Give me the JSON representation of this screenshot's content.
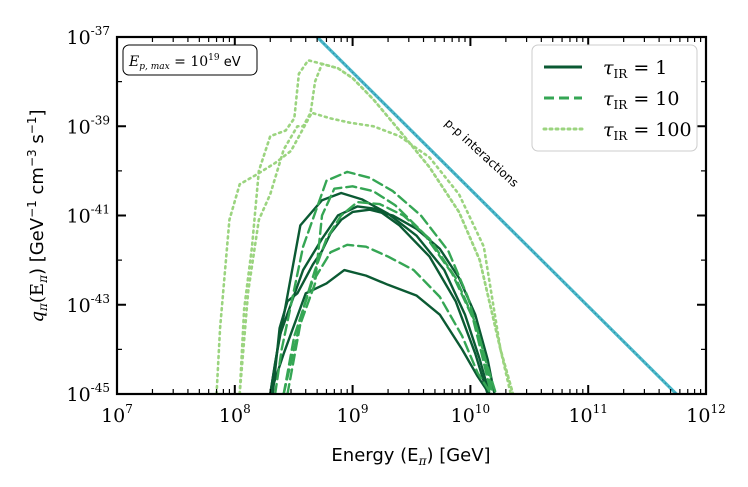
{
  "chart_data": {
    "type": "line",
    "xscale": "log",
    "yscale": "log",
    "xlim": [
      10000000.0,
      1000000000000.0
    ],
    "ylim": [
      1e-45,
      1e-37
    ],
    "xlabel": "Energy (E",
    "xlabel_sub": "π",
    "xlabel_tail": ") [GeV]",
    "ylabel": "q",
    "ylabel_sub": "π",
    "ylabel_mid": "(E",
    "ylabel_sub2": "π",
    "ylabel_tail": ") [GeV",
    "ylabel_units": "cm",
    "ylabel_s": "s",
    "x_ticks": [
      {
        "value": 10000000.0,
        "base": "10",
        "exp": "7"
      },
      {
        "value": 100000000.0,
        "base": "10",
        "exp": "8"
      },
      {
        "value": 1000000000.0,
        "base": "10",
        "exp": "9"
      },
      {
        "value": 10000000000.0,
        "base": "10",
        "exp": "10"
      },
      {
        "value": 100000000000.0,
        "base": "10",
        "exp": "11"
      },
      {
        "value": 1000000000000.0,
        "base": "10",
        "exp": "12"
      }
    ],
    "y_ticks": [
      {
        "value": 1e-37,
        "base": "10",
        "exp": "-37"
      },
      {
        "value": 1e-39,
        "base": "10",
        "exp": "-39"
      },
      {
        "value": 1e-41,
        "base": "10",
        "exp": "-41"
      },
      {
        "value": 1e-43,
        "base": "10",
        "exp": "-43"
      },
      {
        "value": 1e-45,
        "base": "10",
        "exp": "-45"
      }
    ],
    "annotation_box": {
      "lhs": "E",
      "lhs_sub": "p, max",
      "eq": " = 10",
      "exp": "19",
      "unit": " eV"
    },
    "pp_label": "p-p interactions",
    "pp_line": {
      "name": "p-p interactions",
      "color": "#4ab8c9",
      "x": [
        500000000.0,
        560000000000.0
      ],
      "y": [
        1e-37,
        1e-45
      ]
    },
    "legend": [
      {
        "label": "τ",
        "sub": "IR",
        "eq": " = 1",
        "style": "solid",
        "color": "#0b5a33"
      },
      {
        "label": "τ",
        "sub": "IR",
        "eq": " = 10",
        "style": "dashed",
        "color": "#35a654"
      },
      {
        "label": "τ",
        "sub": "IR",
        "eq": " = 100",
        "style": "dotted",
        "color": "#9bd47f"
      }
    ],
    "series": [
      {
        "name": "tau_IR = 1 (a)",
        "style": "solid",
        "color": "#0b5a33",
        "x": [
          200000000.0,
          220000000.0,
          360000000.0,
          550000000.0,
          800000000.0,
          1200000000.0,
          2000000000.0,
          3500000000.0,
          6000000000.0,
          9000000000.0,
          12000000000.0,
          14500000000.0
        ],
        "y": [
          1e-45,
          5e-45,
          6e-42,
          2.2e-41,
          3.2e-41,
          2.3e-41,
          1.1e-41,
          3.5e-42,
          6e-43,
          6e-44,
          6e-45,
          1e-45
        ]
      },
      {
        "name": "tau_IR = 1 (b)",
        "style": "solid",
        "color": "#0b5a33",
        "x": [
          200000000.0,
          240000000.0,
          380000000.0,
          550000000.0,
          750000000.0,
          1100000000.0,
          1600000000.0,
          2500000000.0,
          4500000000.0,
          7500000000.0,
          11000000000.0,
          14000000000.0
        ],
        "y": [
          1e-45,
          2e-44,
          6e-43,
          3e-42,
          1e-41,
          1.6e-41,
          1.4e-41,
          6e-42,
          1.2e-42,
          1.2e-43,
          8e-45,
          1e-45
        ]
      },
      {
        "name": "tau_IR = 1 (c)",
        "style": "solid",
        "color": "#0b5a33",
        "x": [
          200000000.0,
          260000000.0,
          400000000.0,
          600000000.0,
          850000000.0,
          1300000000.0,
          2000000000.0,
          3500000000.0,
          5500000000.0,
          8500000000.0,
          11500000000.0,
          14500000000.0
        ],
        "y": [
          1e-45,
          8e-45,
          1.8e-43,
          3e-43,
          6e-43,
          4.5e-43,
          2.8e-43,
          1.6e-43,
          6e-44,
          1e-44,
          2.5e-45,
          1e-45
        ]
      },
      {
        "name": "tau_IR = 1 (d)",
        "style": "solid",
        "color": "#0b5a33",
        "x": [
          210000000.0,
          240000000.0,
          280000000.0,
          340000000.0,
          460000000.0,
          550000000.0,
          650000000.0,
          800000000.0,
          1000000000.0,
          1400000000.0,
          2200000000.0,
          3500000000.0,
          5500000000.0,
          8000000000.0,
          11000000000.0,
          14000000000.0,
          16000000000.0
        ],
        "y": [
          1e-45,
          3e-44,
          1.2e-43,
          1.8e-43,
          8e-43,
          1.6e-42,
          4e-42,
          8e-42,
          1.2e-41,
          1.35e-41,
          1e-41,
          5e-42,
          1.8e-42,
          4e-43,
          6e-44,
          6e-45,
          1e-45
        ]
      },
      {
        "name": "tau_IR = 10 (a)",
        "style": "dashed",
        "color": "#35a654",
        "x": [
          220000000.0,
          250000000.0,
          380000000.0,
          600000000.0,
          900000000.0,
          1400000000.0,
          2200000000.0,
          3800000000.0,
          6500000000.0,
          9500000000.0,
          12500000000.0,
          15500000000.0
        ],
        "y": [
          1e-45,
          1e-44,
          2e-42,
          6e-41,
          9.5e-41,
          7e-41,
          3.5e-41,
          1e-41,
          1.6e-42,
          1.5e-43,
          1.2e-44,
          1e-45
        ]
      },
      {
        "name": "tau_IR = 10 (b)",
        "style": "dashed",
        "color": "#35a654",
        "x": [
          260000000.0,
          350000000.0,
          480000000.0,
          550000000.0,
          700000000.0,
          1000000000.0,
          1500000000.0,
          2300000000.0,
          4000000000.0,
          7000000000.0,
          10500000000.0,
          13000000000.0,
          15000000000.0
        ],
        "y": [
          1e-45,
          3e-44,
          3e-43,
          1e-41,
          4e-41,
          4.5e-41,
          3.5e-41,
          1.7e-41,
          4e-42,
          5e-43,
          5e-44,
          5e-45,
          1e-45
        ]
      },
      {
        "name": "tau_IR = 10 (c)",
        "style": "dashed",
        "color": "#35a654",
        "x": [
          260000000.0,
          320000000.0,
          450000000.0,
          650000000.0,
          900000000.0,
          1300000000.0,
          2000000000.0,
          3300000000.0,
          5500000000.0,
          8500000000.0,
          11500000000.0,
          15000000000.0
        ],
        "y": [
          1e-45,
          2e-44,
          3e-43,
          1.5e-42,
          2.2e-42,
          2e-42,
          1.2e-42,
          6e-43,
          1.5e-43,
          2e-44,
          3e-45,
          1e-45
        ]
      },
      {
        "name": "tau_IR = 10 (d)",
        "style": "dashed",
        "color": "#35a654",
        "x": [
          280000000.0,
          380000000.0,
          480000000.0,
          600000000.0,
          800000000.0,
          1100000000.0,
          1700000000.0,
          2700000000.0,
          4500000000.0,
          7500000000.0,
          11000000000.0,
          14000000000.0,
          16500000000.0
        ],
        "y": [
          1e-45,
          8e-44,
          6e-43,
          3e-42,
          1e-41,
          2e-41,
          1.8e-41,
          1e-41,
          3e-42,
          4e-43,
          4e-44,
          4e-45,
          1e-45
        ]
      },
      {
        "name": "tau_IR = 100 (a)",
        "style": "dotted",
        "color": "#9bd47f",
        "x": [
          70000000.0,
          75000000.0,
          90000000.0,
          110000000.0,
          150000000.0,
          220000000.0,
          300000000.0,
          450000000.0,
          650000000.0,
          950000000.0,
          1500000000.0,
          2500000000.0,
          4500000000.0,
          8000000000.0,
          13000000000.0,
          18000000000.0,
          22000000000.0
        ],
        "y": [
          1e-45,
          3e-44,
          8e-42,
          5e-41,
          8e-41,
          1.5e-40,
          2.8e-40,
          2e-39,
          1.5e-39,
          1.2e-39,
          1e-39,
          6e-40,
          2e-40,
          3e-41,
          2e-42,
          1e-44,
          1e-45
        ]
      },
      {
        "name": "tau_IR = 100 (b)",
        "style": "dotted",
        "color": "#9bd47f",
        "x": [
          110000000.0,
          120000000.0,
          140000000.0,
          160000000.0,
          200000000.0,
          270000000.0,
          320000000.0,
          350000000.0,
          420000000.0,
          550000000.0,
          750000000.0,
          1000000000.0,
          1500000000.0,
          2500000000.0,
          4500000000.0,
          8000000000.0,
          12000000000.0,
          18000000000.0,
          23000000000.0
        ],
        "y": [
          1e-45,
          8e-44,
          2e-42,
          1e-40,
          6e-40,
          8e-40,
          1.5e-39,
          1.5e-38,
          3e-38,
          2.5e-38,
          2e-38,
          1.2e-38,
          4e-39,
          8e-40,
          1.2e-40,
          1.2e-41,
          1e-42,
          1e-44,
          1e-45
        ]
      },
      {
        "name": "tau_IR = 100 (c)",
        "style": "dotted",
        "color": "#9bd47f",
        "x": [
          110000000.0,
          130000000.0,
          160000000.0,
          200000000.0,
          260000000.0,
          340000000.0,
          380000000.0,
          440000000.0,
          480000000.0,
          550000000.0,
          750000000.0,
          1000000000.0,
          1500000000.0,
          2500000000.0,
          4500000000.0,
          8000000000.0,
          12000000000.0,
          18000000000.0,
          23000000000.0
        ],
        "y": [
          1e-45,
          2e-43,
          8e-42,
          3e-41,
          3e-40,
          1e-39,
          1e-39,
          2e-39,
          1e-38,
          2.5e-38,
          2e-38,
          1.2e-38,
          4e-39,
          8e-40,
          1.2e-40,
          1.2e-41,
          1e-42,
          1e-44,
          1e-45
        ]
      }
    ]
  }
}
